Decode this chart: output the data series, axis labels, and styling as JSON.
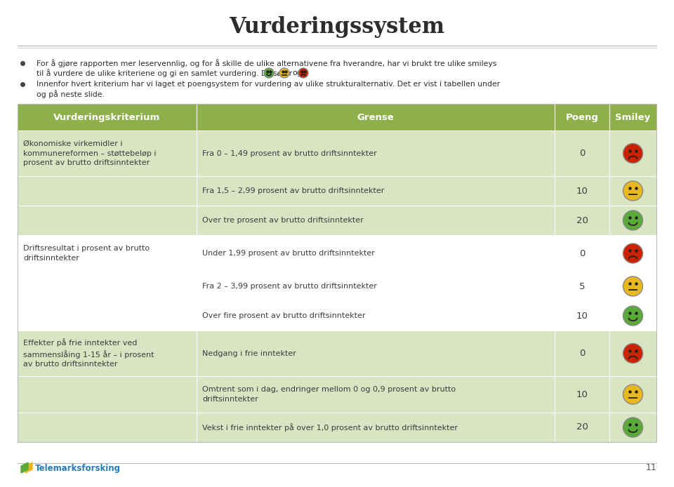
{
  "title": "Vurderingssystem",
  "bullet1_line1": "For å gjøre rapporten mer leservennlig, og for å skille de ulike alternativene fra hverandre, har vi brukt tre ulike smileys",
  "bullet1_line2": "til å vurdere de ulike kriteriene og gi en samlet vurdering. Disse er",
  "bullet2_line1": "Innenfor hvert kriterium har vi laget et poengsystem for vurdering av ulike strukturalternativ. Det er vist i tabellen under",
  "bullet2_line2": "og på neste slide.",
  "header_color": "#8db04a",
  "row_colors": [
    "#d9e4c2",
    "#d9e4c2",
    "#d9e4c2",
    "#ffffff",
    "#ffffff",
    "#ffffff",
    "#d9e4c2",
    "#d9e4c2",
    "#d9e4c2"
  ],
  "header_text_color": "#ffffff",
  "body_text_color": "#3c3c3c",
  "table_headers": [
    "Vurderingskriterium",
    "Grense",
    "Poeng",
    "Smiley"
  ],
  "rows": [
    {
      "criterion": "Økonomiske virkemidler i\nkommunereformen – støttebeløp i\nprosent av brutto driftsinntekter",
      "grense": "Fra 0 – 1,49 prosent av brutto driftsinntekter",
      "poeng": "0",
      "smiley": "red"
    },
    {
      "criterion": "",
      "grense": "Fra 1,5 – 2,99 prosent av brutto driftsinntekter",
      "poeng": "10",
      "smiley": "yellow"
    },
    {
      "criterion": "",
      "grense": "Over tre prosent av brutto driftsinntekter",
      "poeng": "20",
      "smiley": "green"
    },
    {
      "criterion": "Driftsresultat i prosent av brutto\ndriftsinntekter",
      "grense": "Under 1,99 prosent av brutto driftsinntekter",
      "poeng": "0",
      "smiley": "red"
    },
    {
      "criterion": "",
      "grense": "Fra 2 – 3,99 prosent av brutto driftsinntekter",
      "poeng": "5",
      "smiley": "yellow"
    },
    {
      "criterion": "",
      "grense": "Over fire prosent av brutto driftsinntekter",
      "poeng": "10",
      "smiley": "green"
    },
    {
      "criterion": "Effekter på frie inntekter ved\nsammenslåing 1-15 år – i prosent\nav brutto driftsinntekter",
      "grense": "Nedgang i frie inntekter",
      "poeng": "0",
      "smiley": "red"
    },
    {
      "criterion": "",
      "grense": "Omtrent som i dag, endringer mellom 0 og 0,9 prosent av brutto\ndriftsinntekter",
      "poeng": "10",
      "smiley": "yellow"
    },
    {
      "criterion": "",
      "grense": "Vekst i frie inntekter på over 1,0 prosent av brutto driftsinntekter",
      "poeng": "20",
      "smiley": "green"
    }
  ],
  "footer_text": "Telemarksforsking",
  "page_number": "11",
  "background_color": "#ffffff",
  "smiley_colors": {
    "red": "#cc2200",
    "yellow": "#e8b822",
    "green": "#5aaa3a"
  },
  "separator_color": "#bbbbbb",
  "divider_color": "#ffffff"
}
